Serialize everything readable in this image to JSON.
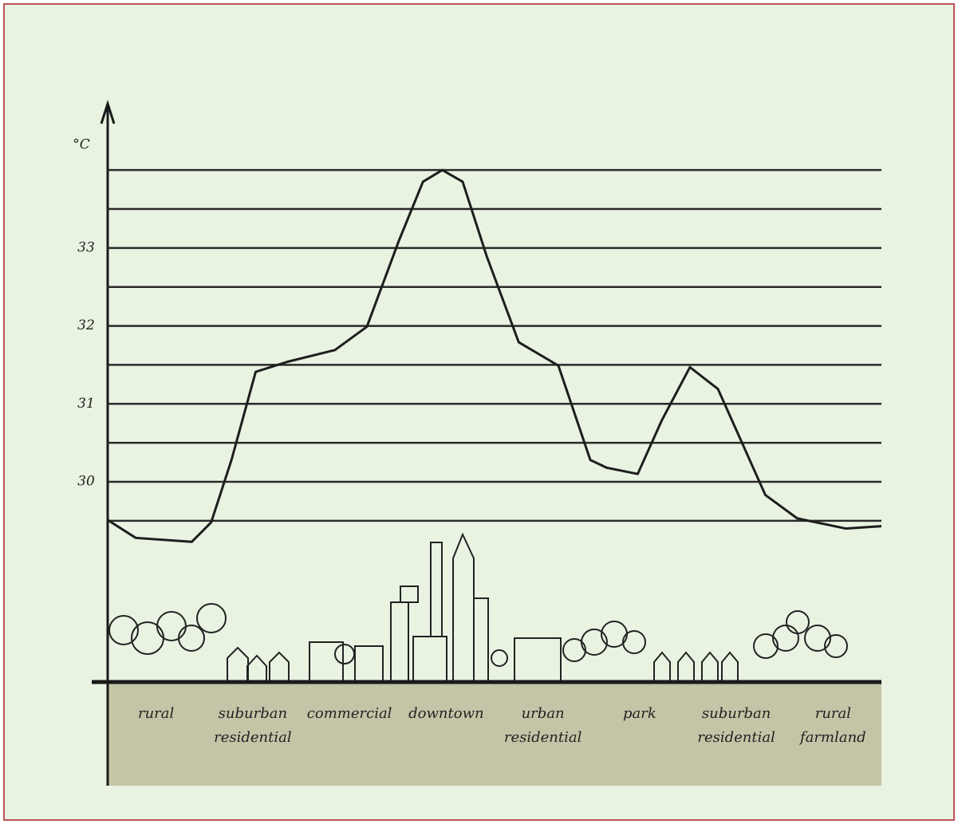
{
  "chart_data": {
    "type": "line",
    "y_axis_label": "°C",
    "categories": [
      "rural",
      "suburban\nresidential",
      "commercial",
      "downtown",
      "urban\nresidential",
      "park",
      "suburban\nresidential",
      "rural\nfarmland"
    ],
    "ylim": [
      26.1,
      34.8
    ],
    "yticks": [
      30,
      31,
      32,
      33
    ],
    "grid_lines": [
      29.5,
      30,
      30.5,
      31,
      31.5,
      32,
      32.5,
      33,
      33.5,
      34
    ],
    "xlim": [
      0,
      8
    ],
    "series": [
      {
        "color": "#1e1e1e",
        "x": [
          0,
          0.29,
          0.87,
          1.07,
          1.28,
          1.53,
          1.86,
          2.35,
          2.68,
          3.01,
          3.26,
          3.46,
          3.67,
          3.92,
          4.25,
          4.66,
          4.99,
          5.16,
          5.48,
          5.73,
          6.02,
          6.31,
          6.8,
          7.13,
          7.63,
          8
        ],
        "values": [
          29.51,
          29.28,
          29.23,
          29.48,
          30.28,
          31.41,
          31.54,
          31.69,
          31.99,
          33.09,
          33.85,
          34.0,
          33.85,
          32.89,
          31.79,
          31.49,
          30.28,
          30.18,
          30.1,
          30.79,
          31.47,
          31.19,
          29.83,
          29.53,
          29.4,
          29.43
        ]
      }
    ]
  }
}
